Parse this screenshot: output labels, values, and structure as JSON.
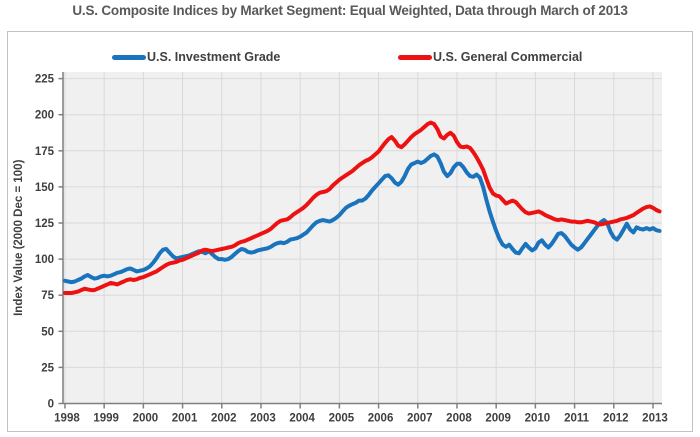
{
  "title": "U.S. Composite Indices by Market Segment: Equal Weighted, Data through March of 2013",
  "colors": {
    "investment_grade_blue": "#1a73bd",
    "general_commercial_red": "#ee1111",
    "plot_background": "#f0f0f0",
    "gridline": "#d9d9d9",
    "axis": "#7f7f7f",
    "tick_label": "#3f3f3f",
    "title_text": "#595959"
  },
  "chart_data": {
    "type": "line",
    "title": "U.S. Composite Indices by Market Segment: Equal Weighted, Data through March of 2013",
    "xlabel": "",
    "ylabel": "Index Value (2000 Dec = 100)",
    "xlim": [
      1997.95,
      2013.23
    ],
    "ylim": [
      0,
      225
    ],
    "x_ticks": [
      1998,
      1999,
      2000,
      2001,
      2002,
      2003,
      2004,
      2005,
      2006,
      2007,
      2008,
      2009,
      2010,
      2011,
      2012,
      2013
    ],
    "y_ticks": [
      0,
      25,
      50,
      75,
      100,
      125,
      150,
      175,
      200,
      225
    ],
    "grid": true,
    "legend_position": "top",
    "x_start_year": 1998.0,
    "x_step": "monthly",
    "x_end_label": "March 2013",
    "series": [
      {
        "name": "U.S. Investment Grade",
        "color": "#1a73bd",
        "values": [
          85,
          84.5,
          84,
          84.5,
          85.5,
          86.5,
          88,
          89,
          87.5,
          86.5,
          87,
          88,
          88.5,
          88,
          88.5,
          89.5,
          90.5,
          91,
          92,
          93,
          93.5,
          92.5,
          91.5,
          92,
          92.5,
          93.5,
          95,
          97.5,
          100.5,
          104,
          106.5,
          107,
          104.5,
          102,
          100.5,
          101,
          101.5,
          102,
          102.5,
          103.5,
          104.5,
          105.5,
          105,
          104,
          105.5,
          103.5,
          101.5,
          100,
          100,
          99.5,
          100,
          101.5,
          103.5,
          105.5,
          107,
          106.5,
          105,
          104.5,
          105,
          106,
          106.5,
          107,
          107.5,
          108.5,
          110,
          111,
          111.5,
          111,
          112,
          113.5,
          114,
          114.5,
          115.5,
          117,
          118.5,
          121,
          123.5,
          125.5,
          126.5,
          127,
          126.5,
          126,
          127,
          128.5,
          130.5,
          133,
          135.5,
          137,
          138,
          139,
          140.5,
          140.5,
          142,
          144.5,
          147.5,
          150,
          152.5,
          155,
          157.5,
          158,
          156,
          153,
          151.5,
          153.5,
          157.5,
          162.5,
          165.5,
          166.5,
          167.5,
          166.5,
          167.5,
          169.5,
          171.5,
          172.5,
          171,
          166.5,
          160.5,
          157.5,
          159.5,
          163.5,
          166,
          166,
          163.5,
          160,
          157.5,
          157,
          158.5,
          156.5,
          150,
          141,
          133,
          126,
          119.5,
          114,
          110,
          108.5,
          110,
          107,
          104.5,
          104,
          107.5,
          110.5,
          108,
          106,
          107.5,
          111.5,
          113,
          110,
          108,
          110.5,
          114,
          117.5,
          118,
          116,
          113,
          110,
          108,
          106.5,
          108,
          111,
          114,
          117,
          120,
          123,
          125.5,
          127,
          125,
          119,
          115,
          113.5,
          116.5,
          120.5,
          124.5,
          120.5,
          118.5,
          122,
          121,
          120.5,
          121.5,
          120.5,
          121.5,
          120,
          119.5
        ]
      },
      {
        "name": "U.S. General Commercial",
        "color": "#ee1111",
        "values": [
          76.5,
          76.5,
          76.5,
          77,
          77.5,
          78.5,
          79.5,
          79,
          78.5,
          78.5,
          79.5,
          80.5,
          81.5,
          82.5,
          83.5,
          83,
          82.5,
          83.5,
          84.5,
          85.5,
          86,
          85.5,
          86,
          87,
          87.5,
          88.5,
          89.5,
          90.5,
          91.5,
          93,
          94.5,
          96,
          97,
          97.5,
          98,
          99,
          99.5,
          100.5,
          101.5,
          102.5,
          103.5,
          104.5,
          106,
          106.5,
          106,
          105.5,
          106,
          106.5,
          107,
          107.5,
          108,
          108.5,
          109.5,
          111,
          112,
          112.5,
          113.5,
          114.5,
          115.5,
          116.5,
          117.5,
          118.5,
          119.5,
          121,
          123,
          125,
          126.5,
          127,
          127.5,
          129,
          131,
          132.5,
          134,
          135.5,
          137.5,
          140,
          142.5,
          144.5,
          146,
          146.5,
          147,
          148.5,
          151,
          153,
          155,
          156.5,
          158,
          159.5,
          161,
          163,
          165,
          166.5,
          168,
          169,
          170.5,
          172.5,
          174.5,
          177.5,
          180.5,
          183,
          184.5,
          182,
          178.5,
          177.5,
          179.5,
          182,
          184.5,
          186.5,
          188,
          189.5,
          191.5,
          193.5,
          194.5,
          193.5,
          190,
          185,
          183.5,
          186,
          187.5,
          185.5,
          181,
          178,
          177.5,
          178,
          177,
          174,
          170.5,
          166.5,
          162,
          155.5,
          149.5,
          145.5,
          144,
          143.5,
          141,
          138.5,
          139.5,
          140.5,
          139.5,
          137,
          134.5,
          132.5,
          131.5,
          132,
          132.5,
          133,
          132,
          130.5,
          129.5,
          128.5,
          127.5,
          127,
          127.5,
          127,
          126.5,
          126,
          126,
          125.5,
          125.5,
          126,
          126.5,
          126,
          125.5,
          124.5,
          124,
          124.5,
          125,
          125.5,
          126,
          126.5,
          127.5,
          128,
          128.5,
          129.5,
          130.5,
          132,
          133.5,
          135,
          136,
          136.5,
          135.5,
          134,
          133
        ]
      }
    ]
  }
}
